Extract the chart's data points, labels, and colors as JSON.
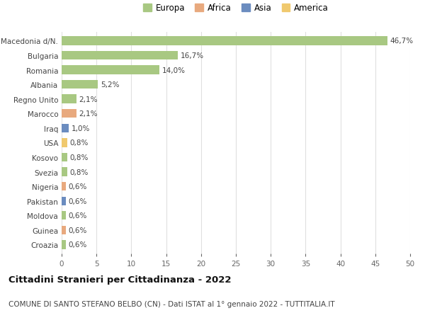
{
  "categories": [
    "Macedonia d/N.",
    "Bulgaria",
    "Romania",
    "Albania",
    "Regno Unito",
    "Marocco",
    "Iraq",
    "USA",
    "Kosovo",
    "Svezia",
    "Nigeria",
    "Pakistan",
    "Moldova",
    "Guinea",
    "Croazia"
  ],
  "values": [
    46.7,
    16.7,
    14.0,
    5.2,
    2.1,
    2.1,
    1.0,
    0.8,
    0.8,
    0.8,
    0.6,
    0.6,
    0.6,
    0.6,
    0.6
  ],
  "labels": [
    "46,7%",
    "16,7%",
    "14,0%",
    "5,2%",
    "2,1%",
    "2,1%",
    "1,0%",
    "0,8%",
    "0,8%",
    "0,8%",
    "0,6%",
    "0,6%",
    "0,6%",
    "0,6%",
    "0,6%"
  ],
  "continents": [
    "Europa",
    "Europa",
    "Europa",
    "Europa",
    "Europa",
    "Africa",
    "Asia",
    "America",
    "Europa",
    "Europa",
    "Africa",
    "Asia",
    "Europa",
    "Africa",
    "Europa"
  ],
  "continent_colors": {
    "Europa": "#a8c882",
    "Africa": "#e8a97e",
    "Asia": "#6b8cbf",
    "America": "#f0c96e"
  },
  "legend_order": [
    "Europa",
    "Africa",
    "Asia",
    "America"
  ],
  "xlim": [
    0,
    50
  ],
  "xticks": [
    0,
    5,
    10,
    15,
    20,
    25,
    30,
    35,
    40,
    45,
    50
  ],
  "title": "Cittadini Stranieri per Cittadinanza - 2022",
  "subtitle": "COMUNE DI SANTO STEFANO BELBO (CN) - Dati ISTAT al 1° gennaio 2022 - TUTTITALIA.IT",
  "background_color": "#ffffff",
  "grid_color": "#e0e0e0",
  "bar_height": 0.6,
  "label_fontsize": 7.5,
  "title_fontsize": 9.5,
  "subtitle_fontsize": 7.5,
  "ytick_fontsize": 7.5,
  "xtick_fontsize": 7.5,
  "legend_fontsize": 8.5
}
